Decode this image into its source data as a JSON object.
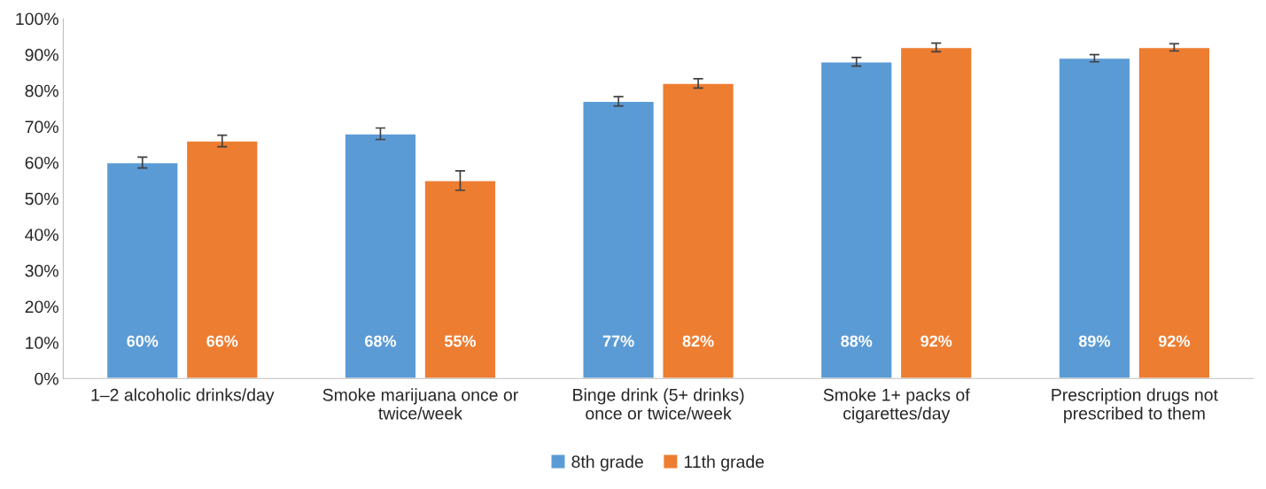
{
  "chart_data": {
    "type": "bar",
    "categories": [
      "1–2 alcoholic drinks/day",
      "Smoke marijuana once or\ntwice/week",
      "Binge drink (5+ drinks)\nonce or twice/week",
      "Smoke 1+ packs of\ncigarettes/day",
      "Prescription drugs not\nprescribed to them"
    ],
    "series": [
      {
        "name": "8th grade",
        "color": "#5b9bd5",
        "values": [
          60,
          68,
          77,
          88,
          89
        ],
        "errors": [
          1.5,
          1.6,
          1.3,
          1.2,
          1.0
        ],
        "value_labels": [
          "60%",
          "68%",
          "77%",
          "88%",
          "89%"
        ]
      },
      {
        "name": "11th grade",
        "color": "#ed7d31",
        "values": [
          66,
          55,
          82,
          92,
          92
        ],
        "errors": [
          1.6,
          2.7,
          1.3,
          1.2,
          1.0
        ],
        "value_labels": [
          "66%",
          "55%",
          "82%",
          "92%",
          "92%"
        ]
      }
    ],
    "ylim": [
      0,
      100
    ],
    "yticks": [
      {
        "value": 0,
        "label": "0%"
      },
      {
        "value": 10,
        "label": "10%"
      },
      {
        "value": 20,
        "label": "20%"
      },
      {
        "value": 30,
        "label": "30%"
      },
      {
        "value": 40,
        "label": "40%"
      },
      {
        "value": 50,
        "label": "50%"
      },
      {
        "value": 60,
        "label": "60%"
      },
      {
        "value": 70,
        "label": "70%"
      },
      {
        "value": 80,
        "label": "80%"
      },
      {
        "value": 90,
        "label": "90%"
      },
      {
        "value": 100,
        "label": "100%"
      }
    ],
    "grid": false,
    "legend": "bottom"
  }
}
